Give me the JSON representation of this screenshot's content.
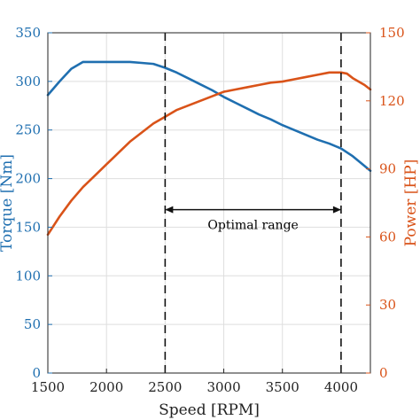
{
  "chart_data": {
    "type": "line",
    "xlabel": "Speed [RPM]",
    "ylabel_left": "Torque [Nm]",
    "ylabel_right": "Power [HP]",
    "xlim": [
      1500,
      4250
    ],
    "ylim_left": [
      0,
      350
    ],
    "ylim_right": [
      0,
      150
    ],
    "x_ticks": [
      1500,
      2000,
      2500,
      3000,
      3500,
      4000
    ],
    "y_ticks_left": [
      0,
      50,
      100,
      150,
      200,
      250,
      300,
      350
    ],
    "y_ticks_right": [
      0,
      30,
      60,
      90,
      120,
      150
    ],
    "grid": true,
    "series": [
      {
        "name": "Torque [Nm]",
        "axis": "left",
        "color": "#1f6fb0",
        "x": [
          1500,
          1600,
          1700,
          1800,
          1900,
          2000,
          2100,
          2200,
          2300,
          2400,
          2500,
          2600,
          2700,
          2800,
          2900,
          3000,
          3100,
          3200,
          3300,
          3400,
          3500,
          3600,
          3700,
          3800,
          3900,
          4000,
          4100,
          4200,
          4250
        ],
        "y": [
          286,
          300,
          313,
          320,
          320,
          320,
          320,
          320,
          319,
          318,
          314,
          309,
          303,
          297,
          291,
          284,
          278,
          272,
          266,
          261,
          255,
          250,
          245,
          240,
          236,
          231,
          223,
          213,
          208
        ]
      },
      {
        "name": "Power [HP]",
        "axis": "right",
        "color": "#d95319",
        "x": [
          1500,
          1600,
          1700,
          1800,
          1900,
          2000,
          2100,
          2200,
          2300,
          2400,
          2500,
          2600,
          2700,
          2800,
          2900,
          3000,
          3100,
          3200,
          3300,
          3400,
          3500,
          3600,
          3700,
          3800,
          3900,
          4000,
          4050,
          4100,
          4200,
          4250
        ],
        "y": [
          61,
          69,
          76,
          82,
          87,
          92,
          97,
          102,
          106,
          110,
          113,
          116,
          118,
          120,
          122,
          124,
          125,
          126,
          127,
          128,
          128.5,
          129.5,
          130.5,
          131.5,
          132.5,
          132.5,
          132,
          130,
          127,
          125
        ]
      }
    ],
    "annotations": {
      "optimal_range": {
        "label": "Optimal range",
        "x_start": 2500,
        "x_end": 4000,
        "y_left": 168
      }
    }
  }
}
